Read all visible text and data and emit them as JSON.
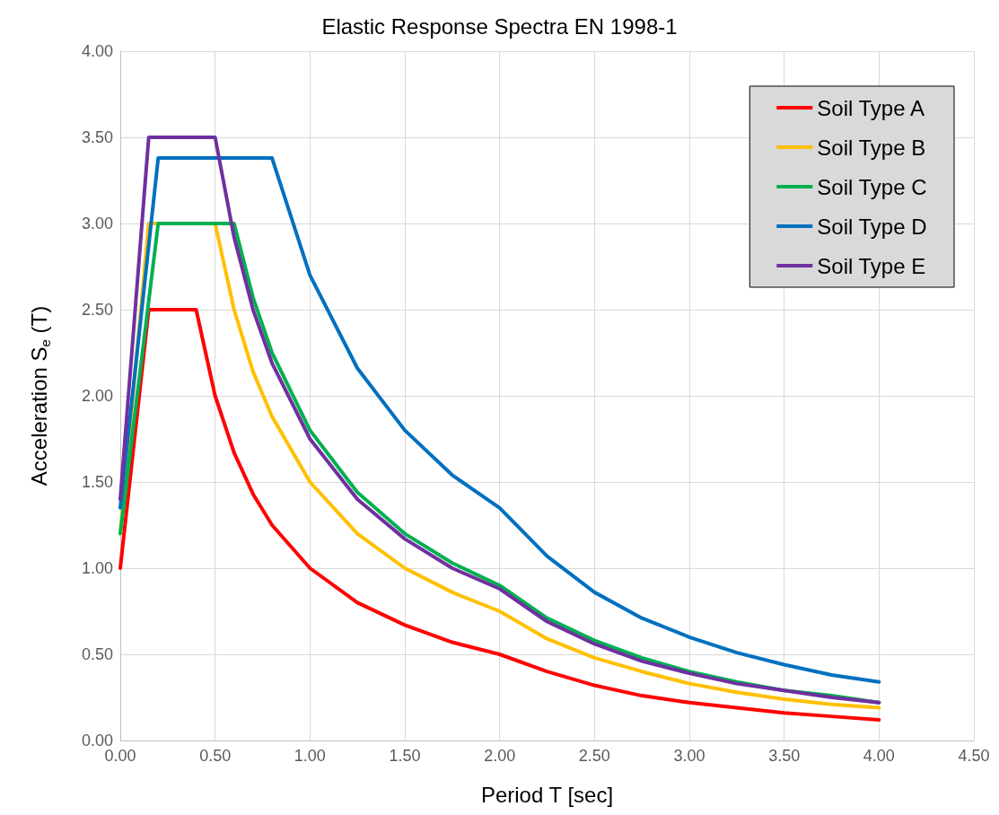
{
  "chart_data": {
    "type": "line",
    "title": "Elastic Response Spectra EN 1998-1",
    "xlabel": "Period T [sec]",
    "ylabel": "Acceleration S$_{e}$ (T)",
    "xlim": [
      0,
      4.5
    ],
    "xticks": [
      {
        "value": 0,
        "label": "0.00"
      },
      {
        "value": 0.5,
        "label": "0.50"
      },
      {
        "value": 1,
        "label": "1.00"
      },
      {
        "value": 1.5,
        "label": "1.50"
      },
      {
        "value": 2,
        "label": "2.00"
      },
      {
        "value": 2.5,
        "label": "2.50"
      },
      {
        "value": 3,
        "label": "3.00"
      },
      {
        "value": 3.5,
        "label": "3.50"
      },
      {
        "value": 4,
        "label": "4.00"
      },
      {
        "value": 4.5,
        "label": "4.50"
      }
    ],
    "ylim": [
      0,
      4
    ],
    "yticks": [
      {
        "value": 0,
        "label": "0.00"
      },
      {
        "value": 0.5,
        "label": "0.50"
      },
      {
        "value": 1,
        "label": "1.00"
      },
      {
        "value": 1.5,
        "label": "1.50"
      },
      {
        "value": 2,
        "label": "2.00"
      },
      {
        "value": 2.5,
        "label": "2.50"
      },
      {
        "value": 3,
        "label": "3.00"
      },
      {
        "value": 3.5,
        "label": "3.50"
      },
      {
        "value": 4,
        "label": "4.00"
      }
    ],
    "grid": true,
    "legend": "top right",
    "marker": "none",
    "line_style": "solid",
    "series": [
      {
        "name": "Soil Type A",
        "color": "#ff0000",
        "x": [
          0,
          0.15,
          0.4,
          0.5,
          0.6,
          0.7,
          0.8,
          1.0,
          1.25,
          1.5,
          1.75,
          2.0,
          2.25,
          2.5,
          2.75,
          3.0,
          3.25,
          3.5,
          3.75,
          4.0
        ],
        "values": [
          1.0,
          2.5,
          2.5,
          2.0,
          1.67,
          1.43,
          1.25,
          1.0,
          0.8,
          0.67,
          0.57,
          0.5,
          0.4,
          0.32,
          0.26,
          0.22,
          0.19,
          0.16,
          0.14,
          0.12
        ]
      },
      {
        "name": "Soil Type B",
        "color": "#ffc000",
        "x": [
          0,
          0.15,
          0.5,
          0.6,
          0.7,
          0.8,
          1.0,
          1.25,
          1.5,
          1.75,
          2.0,
          2.25,
          2.5,
          2.75,
          3.0,
          3.25,
          3.5,
          3.75,
          4.0
        ],
        "values": [
          1.2,
          3.0,
          3.0,
          2.5,
          2.14,
          1.88,
          1.5,
          1.2,
          1.0,
          0.86,
          0.75,
          0.59,
          0.48,
          0.4,
          0.33,
          0.28,
          0.24,
          0.21,
          0.19
        ]
      },
      {
        "name": "Soil Type C",
        "color": "#00b050",
        "x": [
          0,
          0.2,
          0.6,
          0.7,
          0.8,
          1.0,
          1.25,
          1.5,
          1.75,
          2.0,
          2.25,
          2.5,
          2.75,
          3.0,
          3.25,
          3.5,
          3.75,
          4.0
        ],
        "values": [
          1.2,
          3.0,
          3.0,
          2.57,
          2.25,
          1.8,
          1.44,
          1.2,
          1.03,
          0.9,
          0.71,
          0.58,
          0.48,
          0.4,
          0.34,
          0.29,
          0.26,
          0.22
        ]
      },
      {
        "name": "Soil Type D",
        "color": "#0070c0",
        "x": [
          0,
          0.2,
          0.8,
          1.0,
          1.25,
          1.5,
          1.75,
          2.0,
          2.25,
          2.5,
          2.75,
          3.0,
          3.25,
          3.5,
          3.75,
          4.0
        ],
        "values": [
          1.35,
          3.38,
          3.38,
          2.7,
          2.16,
          1.8,
          1.54,
          1.35,
          1.07,
          0.86,
          0.71,
          0.6,
          0.51,
          0.44,
          0.38,
          0.34
        ]
      },
      {
        "name": "Soil Type E",
        "color": "#7030a0",
        "x": [
          0,
          0.15,
          0.5,
          0.6,
          0.7,
          0.8,
          1.0,
          1.25,
          1.5,
          1.75,
          2.0,
          2.25,
          2.5,
          2.75,
          3.0,
          3.25,
          3.5,
          3.75,
          4.0
        ],
        "values": [
          1.4,
          3.5,
          3.5,
          2.92,
          2.5,
          2.19,
          1.75,
          1.4,
          1.17,
          1.0,
          0.88,
          0.69,
          0.56,
          0.46,
          0.39,
          0.33,
          0.29,
          0.25,
          0.22
        ]
      }
    ]
  }
}
